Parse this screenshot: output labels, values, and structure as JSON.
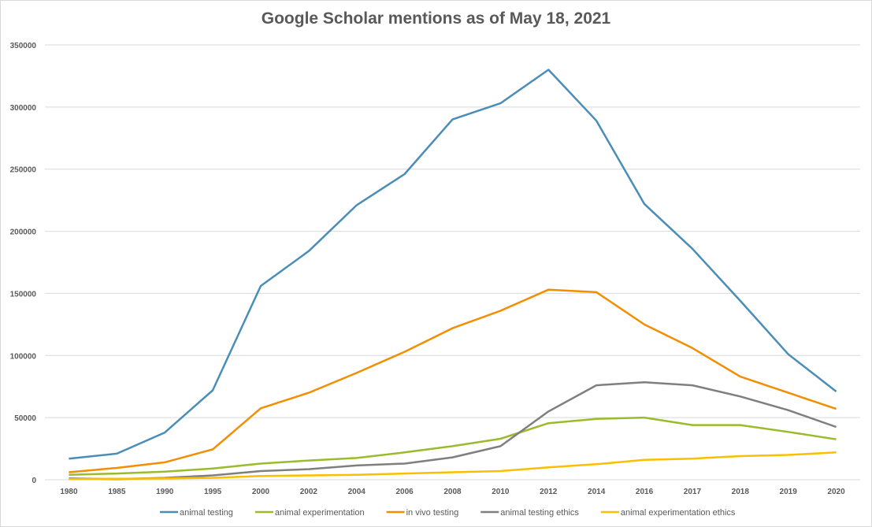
{
  "chart_data": {
    "type": "line",
    "title": "Google Scholar mentions as of May 18, 2021",
    "xlabel": "",
    "ylabel": "",
    "ylim": [
      0,
      350000
    ],
    "yticks": [
      0,
      50000,
      100000,
      150000,
      200000,
      250000,
      300000,
      350000
    ],
    "grid": true,
    "legend_position": "bottom",
    "categories": [
      "1980",
      "1985",
      "1990",
      "1995",
      "2000",
      "2002",
      "2004",
      "2006",
      "2008",
      "2010",
      "2012",
      "2014",
      "2016",
      "2017",
      "2018",
      "2019",
      "2020"
    ],
    "series": [
      {
        "name": "animal testing",
        "color": "#4a8db7",
        "values": [
          17000,
          21000,
          38000,
          72000,
          156000,
          184000,
          221000,
          246000,
          290000,
          303000,
          330000,
          289000,
          222000,
          186000,
          144000,
          101000,
          71000
        ]
      },
      {
        "name": "animal experimentation",
        "color": "#9bbb2c",
        "values": [
          4000,
          5000,
          6500,
          9000,
          13000,
          15500,
          17500,
          22000,
          27000,
          33000,
          45500,
          49000,
          50000,
          44000,
          44000,
          38500,
          32500
        ]
      },
      {
        "name": "in vivo testing",
        "color": "#f28e00",
        "values": [
          6000,
          9500,
          14000,
          24500,
          57500,
          70000,
          86000,
          103000,
          122000,
          136000,
          153000,
          151000,
          125000,
          106000,
          83000,
          70000,
          57000
        ]
      },
      {
        "name": "animal testing ethics",
        "color": "#7f7f7f",
        "values": [
          1000,
          500,
          1500,
          3500,
          7000,
          8500,
          11500,
          13000,
          18000,
          27000,
          55000,
          76000,
          78500,
          76000,
          67000,
          56000,
          42500
        ]
      },
      {
        "name": "animal experimentation ethics",
        "color": "#fbbf00",
        "values": [
          500,
          800,
          1000,
          1500,
          3000,
          3500,
          4000,
          5000,
          6000,
          7000,
          10000,
          12500,
          16000,
          17000,
          19000,
          20000,
          22000
        ]
      }
    ]
  }
}
